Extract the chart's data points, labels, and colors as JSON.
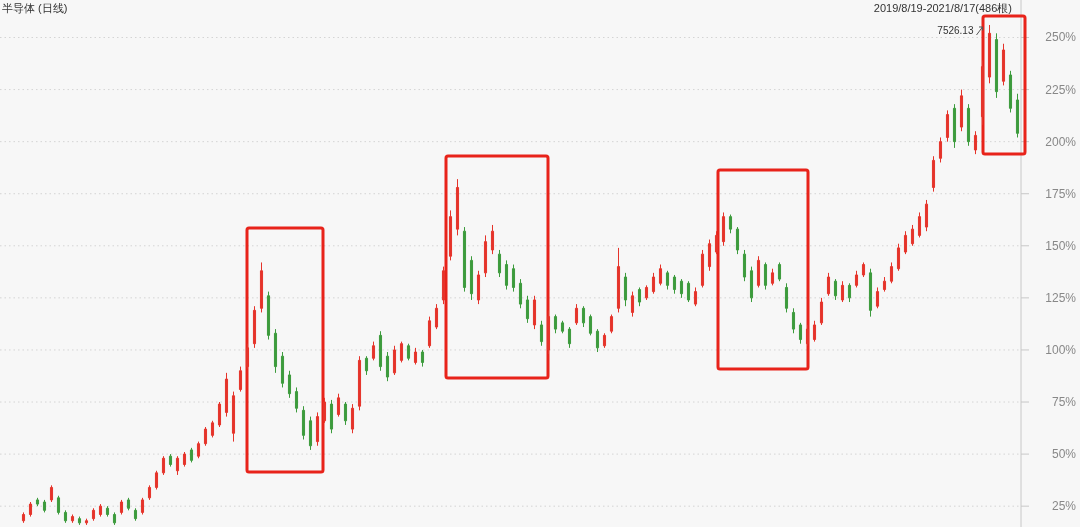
{
  "chart_data": {
    "type": "candlestick",
    "title": "半导体 (日线)",
    "annotations": [
      "2019/8/19-2021/8/17(486根)",
      "7526.13"
    ],
    "categories": [
      null,
      null,
      null,
      null,
      null,
      null,
      null,
      null,
      null,
      null,
      null,
      null,
      null,
      null,
      null,
      null,
      null,
      null,
      null,
      null,
      null,
      null,
      null,
      null,
      null,
      null,
      null,
      null,
      null,
      null,
      null,
      null,
      null,
      null,
      null,
      null,
      null,
      null,
      null,
      null,
      null,
      null,
      null,
      null,
      null,
      null,
      null,
      null,
      null,
      null,
      null,
      null,
      null,
      null,
      null,
      null,
      null,
      null,
      null,
      null,
      null,
      null,
      null,
      null,
      null,
      null,
      null,
      null,
      null,
      null,
      null,
      null,
      null,
      null,
      null,
      null,
      null,
      null,
      null,
      null,
      null,
      null,
      null,
      null,
      null,
      null,
      null,
      null,
      null,
      null,
      null,
      null,
      null,
      null,
      null,
      null,
      null,
      null,
      null,
      null,
      null,
      null,
      null,
      null,
      null,
      null,
      null,
      null,
      null,
      null,
      null,
      null,
      null,
      null,
      null,
      null,
      null,
      null,
      null,
      null,
      null,
      null,
      null,
      null,
      null,
      null,
      null,
      null,
      null,
      null,
      null,
      null,
      null,
      null,
      null,
      null,
      null,
      null,
      null,
      null,
      null,
      null,
      null
    ],
    "ohlc": [
      [
        18,
        22,
        17,
        21
      ],
      [
        21,
        27,
        20,
        26
      ],
      [
        28,
        29,
        25,
        26
      ],
      [
        27,
        28,
        22,
        23
      ],
      [
        28,
        35,
        27,
        34
      ],
      [
        29,
        30,
        21,
        22
      ],
      [
        22,
        23,
        17,
        18
      ],
      [
        18,
        21,
        17,
        20
      ],
      [
        19,
        20,
        16,
        17
      ],
      [
        17,
        19,
        16,
        18
      ],
      [
        19,
        24,
        18,
        23
      ],
      [
        21,
        26,
        20,
        25
      ],
      [
        24,
        25,
        20,
        21
      ],
      [
        21,
        22,
        16,
        17
      ],
      [
        22,
        28,
        21,
        27
      ],
      [
        28,
        29,
        23,
        24
      ],
      [
        23,
        24,
        18,
        19
      ],
      [
        22,
        29,
        21,
        28
      ],
      [
        29,
        35,
        28,
        34
      ],
      [
        34,
        42,
        33,
        41
      ],
      [
        41,
        49,
        40,
        48
      ],
      [
        49,
        50,
        44,
        45
      ],
      [
        42,
        49,
        40,
        48
      ],
      [
        45,
        51,
        44,
        50
      ],
      [
        52,
        53,
        46,
        47
      ],
      [
        49,
        56,
        48,
        55
      ],
      [
        55,
        63,
        54,
        62
      ],
      [
        59,
        66,
        58,
        65
      ],
      [
        64,
        75,
        63,
        74
      ],
      [
        70,
        89,
        68,
        86
      ],
      [
        60,
        80,
        56,
        78
      ],
      [
        81,
        92,
        80,
        90
      ],
      [
        92,
        103,
        91,
        101
      ],
      [
        103,
        121,
        101,
        119
      ],
      [
        120,
        142,
        118,
        138
      ],
      [
        126,
        128,
        105,
        107
      ],
      [
        108,
        110,
        89,
        92
      ],
      [
        97,
        99,
        82,
        84
      ],
      [
        88,
        90,
        77,
        79
      ],
      [
        80,
        82,
        70,
        72
      ],
      [
        71,
        73,
        57,
        59
      ],
      [
        66,
        68,
        52,
        54
      ],
      [
        56,
        70,
        54,
        68
      ],
      [
        66,
        77,
        65,
        75
      ],
      [
        74,
        76,
        60,
        62
      ],
      [
        69,
        79,
        68,
        77
      ],
      [
        74,
        75,
        64,
        66
      ],
      [
        62,
        74,
        60,
        72
      ],
      [
        73,
        97,
        71,
        95
      ],
      [
        96,
        97,
        88,
        90
      ],
      [
        96,
        104,
        95,
        102
      ],
      [
        107,
        109,
        90,
        92
      ],
      [
        97,
        99,
        85,
        87
      ],
      [
        89,
        102,
        88,
        100
      ],
      [
        95,
        104,
        94,
        103
      ],
      [
        102,
        103,
        95,
        96
      ],
      [
        94,
        101,
        93,
        99
      ],
      [
        99,
        100,
        92,
        94
      ],
      [
        102,
        116,
        101,
        114
      ],
      [
        111,
        122,
        110,
        120
      ],
      [
        124,
        140,
        122,
        138
      ],
      [
        145,
        167,
        143,
        164
      ],
      [
        158,
        182,
        155,
        178
      ],
      [
        157,
        159,
        128,
        130
      ],
      [
        143,
        145,
        124,
        127
      ],
      [
        124,
        138,
        122,
        136
      ],
      [
        137,
        155,
        135,
        152
      ],
      [
        148,
        160,
        146,
        157
      ],
      [
        146,
        148,
        135,
        137
      ],
      [
        141,
        143,
        129,
        131
      ],
      [
        139,
        141,
        128,
        130
      ],
      [
        132,
        134,
        120,
        122
      ],
      [
        124,
        126,
        113,
        115
      ],
      [
        112,
        126,
        110,
        124
      ],
      [
        112,
        114,
        102,
        104
      ],
      [
        100,
        119,
        98,
        116
      ],
      [
        116,
        117,
        108,
        110
      ],
      [
        113,
        114,
        108,
        109
      ],
      [
        110,
        111,
        101,
        103
      ],
      [
        113,
        122,
        112,
        120
      ],
      [
        120,
        121,
        111,
        113
      ],
      [
        116,
        117,
        107,
        108
      ],
      [
        109,
        110,
        99,
        101
      ],
      [
        102,
        108,
        101,
        107
      ],
      [
        109,
        117,
        108,
        116
      ],
      [
        120,
        149,
        118,
        140
      ],
      [
        135,
        137,
        121,
        124
      ],
      [
        118,
        128,
        116,
        126
      ],
      [
        129,
        130,
        121,
        123
      ],
      [
        125,
        131,
        124,
        130
      ],
      [
        128,
        137,
        127,
        135
      ],
      [
        132,
        141,
        131,
        139
      ],
      [
        137,
        138,
        129,
        131
      ],
      [
        135,
        136,
        127,
        129
      ],
      [
        133,
        134,
        125,
        127
      ],
      [
        132,
        133,
        123,
        124
      ],
      [
        122,
        130,
        121,
        128
      ],
      [
        131,
        148,
        130,
        146
      ],
      [
        140,
        153,
        138,
        151
      ],
      [
        147,
        157,
        146,
        155
      ],
      [
        152,
        166,
        150,
        164
      ],
      [
        164,
        165,
        156,
        158
      ],
      [
        158,
        159,
        146,
        148
      ],
      [
        146,
        148,
        133,
        135
      ],
      [
        138,
        140,
        123,
        125
      ],
      [
        131,
        145,
        130,
        143
      ],
      [
        141,
        142,
        129,
        131
      ],
      [
        132,
        139,
        131,
        137
      ],
      [
        141,
        142,
        133,
        134
      ],
      [
        130,
        132,
        118,
        120
      ],
      [
        118,
        120,
        108,
        110
      ],
      [
        112,
        113,
        103,
        105
      ],
      [
        103,
        112,
        102,
        110
      ],
      [
        105,
        114,
        104,
        112
      ],
      [
        113,
        125,
        112,
        123
      ],
      [
        127,
        137,
        126,
        135
      ],
      [
        133,
        134,
        124,
        126
      ],
      [
        124,
        133,
        123,
        131
      ],
      [
        131,
        132,
        123,
        125
      ],
      [
        131,
        138,
        130,
        136
      ],
      [
        136,
        142,
        135,
        141
      ],
      [
        137,
        139,
        116,
        119
      ],
      [
        121,
        130,
        120,
        128
      ],
      [
        129,
        135,
        128,
        133
      ],
      [
        133,
        142,
        132,
        140
      ],
      [
        139,
        151,
        138,
        149
      ],
      [
        147,
        157,
        146,
        155
      ],
      [
        151,
        160,
        150,
        158
      ],
      [
        155,
        166,
        154,
        164
      ],
      [
        159,
        172,
        157,
        170
      ],
      [
        178,
        193,
        176,
        191
      ],
      [
        192,
        202,
        190,
        200
      ],
      [
        202,
        215,
        200,
        213
      ],
      [
        216,
        218,
        197,
        200
      ],
      [
        207,
        225,
        205,
        222
      ],
      [
        216,
        218,
        198,
        200
      ],
      [
        196,
        205,
        194,
        203
      ],
      [
        212,
        239,
        208,
        236
      ],
      [
        231,
        256,
        228,
        252
      ],
      [
        249,
        252,
        221,
        224
      ],
      [
        229,
        247,
        227,
        244
      ],
      [
        232,
        234,
        214,
        216
      ],
      [
        220,
        223,
        202,
        204
      ]
    ],
    "colors": [
      "#e5332a",
      "#e5332a",
      "#3c9b3c",
      "#3c9b3c",
      "#e5332a",
      "#3c9b3c",
      "#3c9b3c",
      "#e5332a",
      "#3c9b3c",
      "#e5332a",
      "#e5332a",
      "#e5332a",
      "#3c9b3c",
      "#3c9b3c",
      "#e5332a",
      "#3c9b3c",
      "#3c9b3c",
      "#e5332a",
      "#e5332a",
      "#e5332a",
      "#e5332a",
      "#3c9b3c",
      "#e5332a",
      "#e5332a",
      "#3c9b3c",
      "#e5332a",
      "#e5332a",
      "#e5332a",
      "#e5332a",
      "#e5332a",
      "#e5332a",
      "#e5332a",
      "#e5332a",
      "#e5332a",
      "#e5332a",
      "#3c9b3c",
      "#3c9b3c",
      "#3c9b3c",
      "#3c9b3c",
      "#3c9b3c",
      "#3c9b3c",
      "#3c9b3c",
      "#e5332a",
      "#e5332a",
      "#3c9b3c",
      "#e5332a",
      "#3c9b3c",
      "#e5332a",
      "#e5332a",
      "#3c9b3c",
      "#e5332a",
      "#3c9b3c",
      "#3c9b3c",
      "#e5332a",
      "#e5332a",
      "#3c9b3c",
      "#e5332a",
      "#3c9b3c",
      "#e5332a",
      "#e5332a",
      "#e5332a",
      "#e5332a",
      "#e5332a",
      "#3c9b3c",
      "#3c9b3c",
      "#e5332a",
      "#e5332a",
      "#e5332a",
      "#3c9b3c",
      "#3c9b3c",
      "#3c9b3c",
      "#3c9b3c",
      "#3c9b3c",
      "#e5332a",
      "#3c9b3c",
      "#e5332a",
      "#3c9b3c",
      "#3c9b3c",
      "#3c9b3c",
      "#e5332a",
      "#3c9b3c",
      "#3c9b3c",
      "#3c9b3c",
      "#e5332a",
      "#e5332a",
      "#e5332a",
      "#3c9b3c",
      "#e5332a",
      "#3c9b3c",
      "#e5332a",
      "#e5332a",
      "#e5332a",
      "#3c9b3c",
      "#3c9b3c",
      "#3c9b3c",
      "#3c9b3c",
      "#e5332a",
      "#e5332a",
      "#e5332a",
      "#e5332a",
      "#e5332a",
      "#3c9b3c",
      "#3c9b3c",
      "#3c9b3c",
      "#3c9b3c",
      "#e5332a",
      "#3c9b3c",
      "#e5332a",
      "#3c9b3c",
      "#3c9b3c",
      "#3c9b3c",
      "#3c9b3c",
      "#e5332a",
      "#e5332a",
      "#e5332a",
      "#e5332a",
      "#3c9b3c",
      "#e5332a",
      "#3c9b3c",
      "#e5332a",
      "#e5332a",
      "#3c9b3c",
      "#e5332a",
      "#e5332a",
      "#e5332a",
      "#e5332a",
      "#e5332a",
      "#e5332a",
      "#e5332a",
      "#e5332a",
      "#e5332a",
      "#e5332a",
      "#e5332a",
      "#3c9b3c",
      "#e5332a",
      "#3c9b3c",
      "#e5332a",
      "#e5332a",
      "#e5332a",
      "#3c9b3c",
      "#e5332a",
      "#3c9b3c",
      "#3c9b3c"
    ],
    "ylim": [
      15,
      268
    ],
    "yticks": [
      {
        "value": 25,
        "label": "25%"
      },
      {
        "value": 50,
        "label": "50%"
      },
      {
        "value": 75,
        "label": "75%"
      },
      {
        "value": 100,
        "label": "100%"
      },
      {
        "value": 125,
        "label": "125%"
      },
      {
        "value": 150,
        "label": "150%"
      },
      {
        "value": 175,
        "label": "175%"
      },
      {
        "value": 200,
        "label": "200%"
      },
      {
        "value": 225,
        "label": "225%"
      },
      {
        "value": 250,
        "label": "250%"
      }
    ],
    "grid": "y",
    "tick_labels": "y"
  }
}
